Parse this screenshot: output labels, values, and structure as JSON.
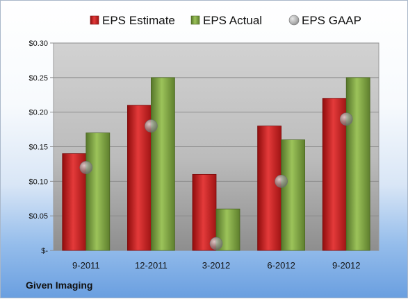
{
  "company": "Given Imaging",
  "chart_data": {
    "type": "bar",
    "categories": [
      "9-2011",
      "12-2011",
      "3-2012",
      "6-2012",
      "9-2012"
    ],
    "series": [
      {
        "name": "EPS Estimate",
        "kind": "bar",
        "color": "#cc1f1f",
        "values": [
          0.14,
          0.21,
          0.11,
          0.18,
          0.22
        ]
      },
      {
        "name": "EPS Actual",
        "kind": "bar",
        "color": "#7ea83c",
        "values": [
          0.17,
          0.25,
          0.06,
          0.16,
          0.25
        ]
      },
      {
        "name": "EPS GAAP",
        "kind": "marker",
        "color": "#9a9a9a",
        "values": [
          0.12,
          0.18,
          0.01,
          0.1,
          0.19
        ]
      }
    ],
    "ylim": [
      0,
      0.3
    ],
    "yticks": [
      {
        "value": 0.3,
        "label": "$0.30"
      },
      {
        "value": 0.25,
        "label": "$0.25"
      },
      {
        "value": 0.2,
        "label": "$0.20"
      },
      {
        "value": 0.15,
        "label": "$0.15"
      },
      {
        "value": 0.1,
        "label": "$0.10"
      },
      {
        "value": 0.05,
        "label": "$0.05"
      },
      {
        "value": 0,
        "label": "$-"
      }
    ],
    "grid": true,
    "legend_position": "top"
  }
}
